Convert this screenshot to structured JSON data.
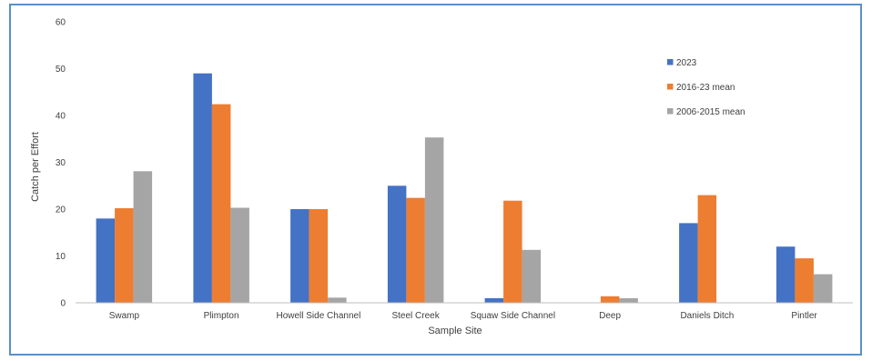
{
  "chart_data": {
    "type": "bar",
    "title": "",
    "xlabel": "Sample Site",
    "ylabel": "Catch per Effort",
    "ylim": [
      0,
      60
    ],
    "yticks": [
      0,
      10,
      20,
      30,
      40,
      50,
      60
    ],
    "grid": false,
    "legend_position": "right",
    "categories": [
      "Swamp",
      "Plimpton",
      "Howell Side Channel",
      "Steel Creek",
      "Squaw Side Channel",
      "Deep",
      "Daniels Ditch",
      "Pintler"
    ],
    "series": [
      {
        "name": "2023",
        "color": "#4472c4",
        "values": [
          18,
          49,
          20,
          25,
          1,
          0,
          17,
          12
        ]
      },
      {
        "name": "2016-23 mean",
        "color": "#ed7d31",
        "values": [
          20.2,
          42.4,
          20,
          22.4,
          21.8,
          1.4,
          23,
          9.5
        ]
      },
      {
        "name": "2006-2015 mean",
        "color": "#a5a5a5",
        "values": [
          28.1,
          20.3,
          1.1,
          35.3,
          11.3,
          1,
          0,
          6.1
        ]
      }
    ]
  }
}
